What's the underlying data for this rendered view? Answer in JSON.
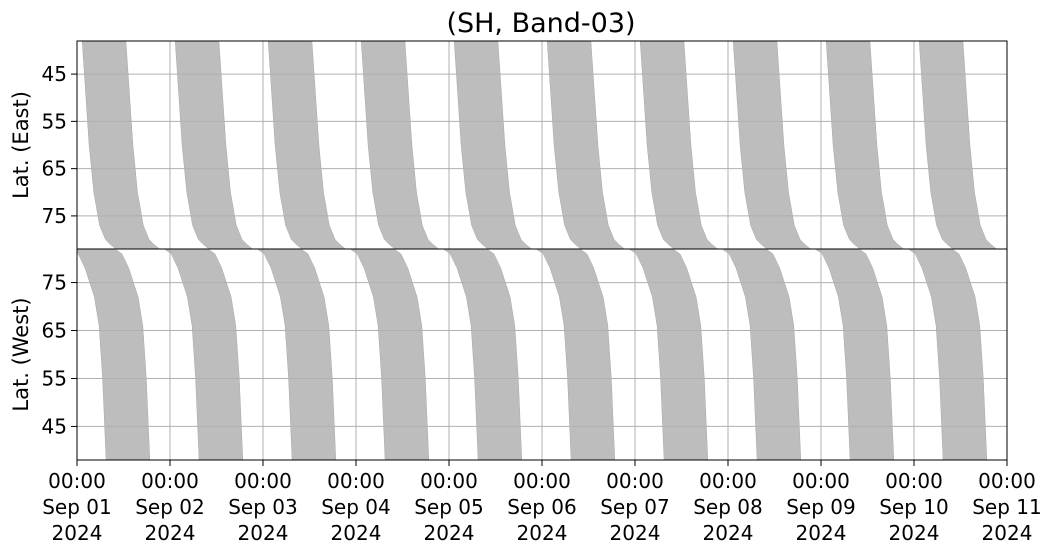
{
  "chart_data": {
    "type": "area",
    "title": "(SH, Band-03)",
    "x_range": [
      "2024-09-01 00:00",
      "2024-09-11 00:00"
    ],
    "x_ticks": [
      {
        "time": "00:00",
        "date": "Sep 01",
        "year": "2024"
      },
      {
        "time": "00:00",
        "date": "Sep 02",
        "year": "2024"
      },
      {
        "time": "00:00",
        "date": "Sep 03",
        "year": "2024"
      },
      {
        "time": "00:00",
        "date": "Sep 04",
        "year": "2024"
      },
      {
        "time": "00:00",
        "date": "Sep 05",
        "year": "2024"
      },
      {
        "time": "00:00",
        "date": "Sep 06",
        "year": "2024"
      },
      {
        "time": "00:00",
        "date": "Sep 07",
        "year": "2024"
      },
      {
        "time": "00:00",
        "date": "Sep 08",
        "year": "2024"
      },
      {
        "time": "00:00",
        "date": "Sep 09",
        "year": "2024"
      },
      {
        "time": "00:00",
        "date": "Sep 10",
        "year": "2024"
      },
      {
        "time": "00:00",
        "date": "Sep 11",
        "year": "2024"
      }
    ],
    "grid": true,
    "fill_color": "#bdbdbd",
    "panels": [
      {
        "name": "east",
        "ylabel": "Lat. (East)",
        "yticks": [
          45,
          55,
          65,
          75
        ],
        "ylim": [
          38,
          82
        ],
        "y_inverted": true,
        "bands": [
          {
            "start": "2024-09-01 01:20",
            "profile": [
              [
                0.0,
                38
              ],
              [
                0.3,
                60
              ],
              [
                0.5,
                70
              ],
              [
                0.75,
                77
              ],
              [
                1.0,
                80
              ],
              [
                1.2,
                81
              ],
              [
                1.45,
                82
              ]
            ]
          },
          {
            "start": "2024-09-02 01:20",
            "profile": [
              [
                0.0,
                38
              ],
              [
                0.3,
                60
              ],
              [
                0.5,
                70
              ],
              [
                0.75,
                77
              ],
              [
                1.0,
                80
              ],
              [
                1.2,
                81
              ],
              [
                1.45,
                82
              ]
            ]
          },
          {
            "start": "2024-09-03 01:20",
            "profile": [
              [
                0.0,
                38
              ],
              [
                0.3,
                60
              ],
              [
                0.5,
                70
              ],
              [
                0.75,
                77
              ],
              [
                1.0,
                80
              ],
              [
                1.2,
                81
              ],
              [
                1.45,
                82
              ]
            ]
          },
          {
            "start": "2024-09-04 01:20",
            "profile": [
              [
                0.0,
                38
              ],
              [
                0.3,
                60
              ],
              [
                0.5,
                70
              ],
              [
                0.75,
                77
              ],
              [
                1.0,
                80
              ],
              [
                1.2,
                81
              ],
              [
                1.45,
                82
              ]
            ]
          },
          {
            "start": "2024-09-05 01:20",
            "profile": [
              [
                0.0,
                38
              ],
              [
                0.3,
                60
              ],
              [
                0.5,
                70
              ],
              [
                0.75,
                77
              ],
              [
                1.0,
                80
              ],
              [
                1.2,
                81
              ],
              [
                1.45,
                82
              ]
            ]
          },
          {
            "start": "2024-09-06 01:20",
            "profile": [
              [
                0.0,
                38
              ],
              [
                0.3,
                60
              ],
              [
                0.5,
                70
              ],
              [
                0.75,
                77
              ],
              [
                1.0,
                80
              ],
              [
                1.2,
                81
              ],
              [
                1.45,
                82
              ]
            ]
          },
          {
            "start": "2024-09-07 01:20",
            "profile": [
              [
                0.0,
                38
              ],
              [
                0.3,
                60
              ],
              [
                0.5,
                70
              ],
              [
                0.75,
                77
              ],
              [
                1.0,
                80
              ],
              [
                1.2,
                81
              ],
              [
                1.45,
                82
              ]
            ]
          },
          {
            "start": "2024-09-08 01:20",
            "profile": [
              [
                0.0,
                38
              ],
              [
                0.3,
                60
              ],
              [
                0.5,
                70
              ],
              [
                0.75,
                77
              ],
              [
                1.0,
                80
              ],
              [
                1.2,
                81
              ],
              [
                1.45,
                82
              ]
            ]
          },
          {
            "start": "2024-09-09 01:20",
            "profile": [
              [
                0.0,
                38
              ],
              [
                0.3,
                60
              ],
              [
                0.5,
                70
              ],
              [
                0.75,
                77
              ],
              [
                1.0,
                80
              ],
              [
                1.2,
                81
              ],
              [
                1.45,
                82
              ]
            ]
          },
          {
            "start": "2024-09-10 01:20",
            "profile": [
              [
                0.0,
                38
              ],
              [
                0.3,
                60
              ],
              [
                0.5,
                70
              ],
              [
                0.75,
                77
              ],
              [
                1.0,
                80
              ],
              [
                1.2,
                81
              ],
              [
                1.45,
                82
              ]
            ]
          }
        ]
      },
      {
        "name": "west",
        "ylabel": "Lat. (West)",
        "yticks": [
          75,
          65,
          55,
          45
        ],
        "ylim": [
          38,
          82
        ],
        "y_inverted": false,
        "bands": [
          {
            "start": "2024-08-31 22:30",
            "profile": [
              [
                0.0,
                82
              ],
              [
                0.3,
                81
              ],
              [
                0.6,
                78
              ],
              [
                1.0,
                72
              ],
              [
                1.2,
                66
              ],
              [
                1.35,
                55
              ],
              [
                1.5,
                38
              ]
            ]
          },
          {
            "start": "2024-09-01 22:30",
            "profile": [
              [
                0.0,
                82
              ],
              [
                0.3,
                81
              ],
              [
                0.6,
                78
              ],
              [
                1.0,
                72
              ],
              [
                1.2,
                66
              ],
              [
                1.35,
                55
              ],
              [
                1.5,
                38
              ]
            ]
          },
          {
            "start": "2024-09-02 22:30",
            "profile": [
              [
                0.0,
                82
              ],
              [
                0.3,
                81
              ],
              [
                0.6,
                78
              ],
              [
                1.0,
                72
              ],
              [
                1.2,
                66
              ],
              [
                1.35,
                55
              ],
              [
                1.5,
                38
              ]
            ]
          },
          {
            "start": "2024-09-03 22:30",
            "profile": [
              [
                0.0,
                82
              ],
              [
                0.3,
                81
              ],
              [
                0.6,
                78
              ],
              [
                1.0,
                72
              ],
              [
                1.2,
                66
              ],
              [
                1.35,
                55
              ],
              [
                1.5,
                38
              ]
            ]
          },
          {
            "start": "2024-09-04 22:30",
            "profile": [
              [
                0.0,
                82
              ],
              [
                0.3,
                81
              ],
              [
                0.6,
                78
              ],
              [
                1.0,
                72
              ],
              [
                1.2,
                66
              ],
              [
                1.35,
                55
              ],
              [
                1.5,
                38
              ]
            ]
          },
          {
            "start": "2024-09-05 22:30",
            "profile": [
              [
                0.0,
                82
              ],
              [
                0.3,
                81
              ],
              [
                0.6,
                78
              ],
              [
                1.0,
                72
              ],
              [
                1.2,
                66
              ],
              [
                1.35,
                55
              ],
              [
                1.5,
                38
              ]
            ]
          },
          {
            "start": "2024-09-06 22:30",
            "profile": [
              [
                0.0,
                82
              ],
              [
                0.3,
                81
              ],
              [
                0.6,
                78
              ],
              [
                1.0,
                72
              ],
              [
                1.2,
                66
              ],
              [
                1.35,
                55
              ],
              [
                1.5,
                38
              ]
            ]
          },
          {
            "start": "2024-09-07 22:30",
            "profile": [
              [
                0.0,
                82
              ],
              [
                0.3,
                81
              ],
              [
                0.6,
                78
              ],
              [
                1.0,
                72
              ],
              [
                1.2,
                66
              ],
              [
                1.35,
                55
              ],
              [
                1.5,
                38
              ]
            ]
          },
          {
            "start": "2024-09-08 22:30",
            "profile": [
              [
                0.0,
                82
              ],
              [
                0.3,
                81
              ],
              [
                0.6,
                78
              ],
              [
                1.0,
                72
              ],
              [
                1.2,
                66
              ],
              [
                1.35,
                55
              ],
              [
                1.5,
                38
              ]
            ]
          },
          {
            "start": "2024-09-09 22:30",
            "profile": [
              [
                0.0,
                82
              ],
              [
                0.3,
                81
              ],
              [
                0.6,
                78
              ],
              [
                1.0,
                72
              ],
              [
                1.2,
                66
              ],
              [
                1.35,
                55
              ],
              [
                1.5,
                38
              ]
            ]
          }
        ]
      }
    ]
  }
}
